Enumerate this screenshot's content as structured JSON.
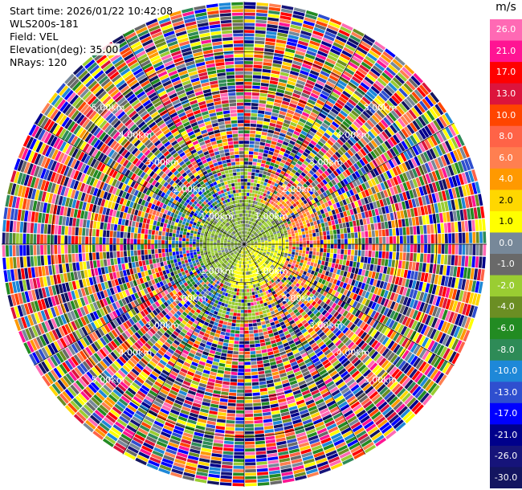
{
  "info": {
    "start_time": "Start time: 2026/01/22 10:42:08",
    "instrument": "WLS200s-181",
    "field": "Field: VEL",
    "elevation": "Elevation(deg): 35.00",
    "nrays": "NRays: 120"
  },
  "colorbar": {
    "unit": "m/s",
    "colors": [
      "#131560",
      "#16147a",
      "#00008b",
      "#0000ff",
      "#2f4fcf",
      "#1e88d8",
      "#2e8b57",
      "#228b22",
      "#6b8e23",
      "#9acd32",
      "#696969",
      "#778899",
      "#ffff00",
      "#ffd700",
      "#ff9900",
      "#ff7f50",
      "#ff6347",
      "#ff4500",
      "#dc143c",
      "#ff0000",
      "#ff1493",
      "#ff69b4"
    ],
    "labels": [
      "-30.0",
      "-26.0",
      "-21.0",
      "-17.0",
      "-13.0",
      "-10.0",
      "-8.0",
      "-6.0",
      "-4.0",
      "-2.0",
      "-1.0",
      "0.0",
      "1.0",
      "2.0",
      "4.0",
      "6.0",
      "8.0",
      "10.0",
      "13.0",
      "17.0",
      "21.0",
      "26.0"
    ]
  },
  "chart_data": {
    "type": "ppi",
    "field": "VEL",
    "nrays": 120,
    "elevation_deg": 35.0,
    "range_rings_km": [
      {
        "range_km": 1.0,
        "label": "1.00km"
      },
      {
        "range_km": 2.0,
        "label": "2.00km"
      },
      {
        "range_km": 3.0,
        "label": "3.00km"
      },
      {
        "range_km": 4.0,
        "label": "4.00km"
      },
      {
        "range_km": 5.0,
        "label": "5.00km"
      }
    ],
    "max_range_km": 6.3,
    "spokes_deg": [
      0,
      30,
      60,
      90,
      120,
      150,
      180,
      210,
      240,
      270,
      300,
      330
    ]
  }
}
